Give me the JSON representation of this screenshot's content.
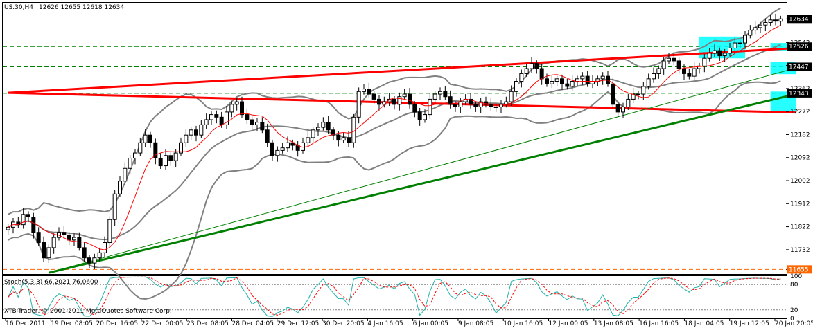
{
  "header": {
    "symbol": "US.30,H4",
    "ohlc": "12626 12655 12618 12634"
  },
  "copyright": "XTB-Trader, © 2001-2011 MetaQuotes Software Corp.",
  "stoch_label": "Stoch(5,3,3) 66.2021 76.0600",
  "colors": {
    "background": "#ffffff",
    "frame": "#000000",
    "grid": "#000000",
    "bull_candle": "#ffffff",
    "bear_candle": "#000000",
    "bollinger": "#808080",
    "ma": "#ff0000",
    "trend_red": "#ff0000",
    "trend_green": "#008000",
    "hline_green": "#008000",
    "hline_orange": "#ff6600",
    "highlight": "#00ffff",
    "stoch_main": "#20b2aa",
    "stoch_signal": "#ff0000",
    "badge_bg": "#000000",
    "badge_text": "#ffffff",
    "badge_orange": "#ff6600"
  },
  "chart_data": {
    "type": "candlestick",
    "timeframe": "H4",
    "y_ticks": [
      12634,
      12542,
      12452,
      12362,
      12272,
      12182,
      12092,
      12002,
      11912,
      11822,
      11732,
      11655
    ],
    "price_labels": [
      {
        "value": 12634,
        "style": "black"
      },
      {
        "value": 12526,
        "style": "black"
      },
      {
        "value": 12447,
        "style": "black"
      },
      {
        "value": 12343,
        "style": "black"
      },
      {
        "value": 11655,
        "style": "orange"
      }
    ],
    "ylim": [
      11637,
      12697
    ],
    "x_labels": [
      "16 Dec 2011",
      "19 Dec 08:05",
      "20 Dec 16:05",
      "22 Dec 00:05",
      "23 Dec 08:05",
      "28 Dec 04:05",
      "29 Dec 12:05",
      "30 Dec 20:05",
      "4 Jan 16:05",
      "6 Jan 00:05",
      "9 Jan 08:05",
      "10 Jan 16:05",
      "12 Jan 00:05",
      "13 Jan 08:05",
      "16 Jan 16:05",
      "18 Jan 04:05",
      "19 Jan 12:05",
      "20 Jan 20:05"
    ],
    "close": [
      11820,
      11840,
      11830,
      11870,
      11860,
      11800,
      11760,
      11700,
      11740,
      11780,
      11800,
      11790,
      11770,
      11780,
      11740,
      11700,
      11680,
      11700,
      11720,
      11760,
      11850,
      11950,
      12000,
      12050,
      12090,
      12110,
      12150,
      12180,
      12150,
      12090,
      12060,
      12100,
      12080,
      12110,
      12150,
      12180,
      12200,
      12180,
      12220,
      12240,
      12260,
      12250,
      12220,
      12270,
      12300,
      12310,
      12260,
      12240,
      12220,
      12230,
      12200,
      12150,
      12100,
      12120,
      12130,
      12150,
      12140,
      12120,
      12150,
      12170,
      12200,
      12210,
      12230,
      12200,
      12180,
      12160,
      12170,
      12150,
      12250,
      12350,
      12360,
      12340,
      12320,
      12300,
      12310,
      12320,
      12300,
      12330,
      12340,
      12300,
      12270,
      12240,
      12260,
      12320,
      12340,
      12350,
      12330,
      12300,
      12290,
      12310,
      12320,
      12300,
      12290,
      12310,
      12300,
      12290,
      12290,
      12300,
      12310,
      12350,
      12390,
      12420,
      12440,
      12460,
      12440,
      12400,
      12380,
      12390,
      12400,
      12380,
      12370,
      12390,
      12400,
      12410,
      12380,
      12390,
      12400,
      12410,
      12380,
      12300,
      12270,
      12290,
      12320,
      12340,
      12340,
      12370,
      12400,
      12420,
      12440,
      12470,
      12480,
      12470,
      12440,
      12420,
      12410,
      12440,
      12450,
      12480,
      12500,
      12510,
      12490,
      12500,
      12520,
      12540,
      12540,
      12570,
      12590,
      12600,
      12610,
      12620,
      12630,
      12625,
      12634
    ],
    "bollinger": {
      "period": 20,
      "deviation": 2
    },
    "ma_red": {
      "period": 8
    },
    "horizontal_levels": [
      {
        "value": 12526,
        "color": "green",
        "style": "dashed"
      },
      {
        "value": 12447,
        "color": "green",
        "style": "dashed"
      },
      {
        "value": 12343,
        "color": "green",
        "style": "dashed"
      },
      {
        "value": 11655,
        "color": "orange",
        "style": "dashed"
      }
    ],
    "trendlines": [
      {
        "name": "red-upper",
        "from": {
          "bar": 0,
          "price": 12345
        },
        "to": {
          "bar": 155,
          "price": 12520
        },
        "color": "red"
      },
      {
        "name": "red-lower",
        "from": {
          "bar": 0,
          "price": 12345
        },
        "to": {
          "bar": 155,
          "price": 12268
        },
        "color": "red"
      },
      {
        "name": "green-thick",
        "from": {
          "bar": 8,
          "price": 11642
        },
        "to": {
          "bar": 155,
          "price": 12340
        },
        "color": "green"
      },
      {
        "name": "green-thin",
        "from": {
          "bar": 8,
          "price": 11642
        },
        "to": {
          "bar": 155,
          "price": 12442
        },
        "color": "green"
      }
    ],
    "highlight_boxes": [
      {
        "from_bar": 136,
        "to_bar": 145,
        "top": 12565,
        "bottom": 12480
      },
      {
        "from_bar": 150,
        "to_bar": 155,
        "top": 12540,
        "bottom": 12510
      },
      {
        "from_bar": 150,
        "to_bar": 155,
        "top": 12467,
        "bottom": 12418
      },
      {
        "from_bar": 150,
        "to_bar": 155,
        "top": 12350,
        "bottom": 12270
      }
    ],
    "stochastic": {
      "k_period": 5,
      "d_period": 3,
      "slowing": 3,
      "main": 66.2021,
      "signal": 76.06,
      "levels": [
        80,
        20
      ],
      "y_ticks": [
        100,
        80,
        20,
        0
      ]
    }
  }
}
